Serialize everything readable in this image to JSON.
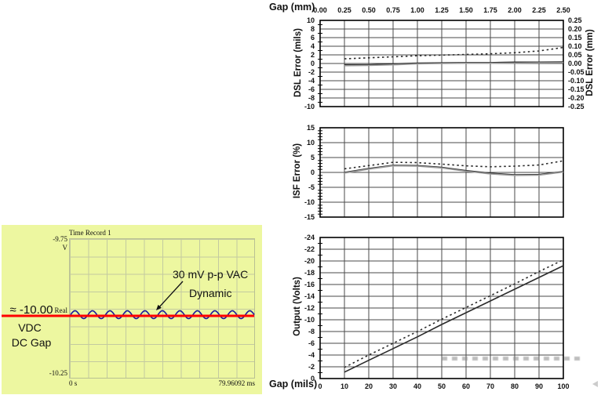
{
  "chart_data": [
    {
      "type": "line",
      "xlabel": "Gap (mm)",
      "ylabel": "DSL Error (mils)",
      "ylabel_right": "DSL Error (mm)",
      "xlim": [
        0,
        2.5
      ],
      "ylim": [
        10,
        -10
      ],
      "grid": true,
      "xtick_labels": [
        "0.00",
        "0.25",
        "0.50",
        "0.75",
        "1.00",
        "1.25",
        "1.50",
        "1.75",
        "2.00",
        "2.25",
        "2.50"
      ],
      "ytick_labels": [
        "10",
        "8",
        "6",
        "4",
        "2",
        "0",
        "-2",
        "-4",
        "-6",
        "-8",
        "-10"
      ],
      "ytick_labels_right": [
        "0.25",
        "0.20",
        "0.15",
        "0.10",
        "0.05",
        "0.00",
        "-0.05",
        "-0.10",
        "-0.15",
        "-0.20",
        "-0.25"
      ],
      "series": [
        {
          "name": "dashed-error",
          "style": "dashed",
          "color": "#2a2a2a",
          "x": [
            0.25,
            0.5,
            0.75,
            1.0,
            1.25,
            1.5,
            1.75,
            2.0,
            2.25,
            2.5
          ],
          "values": [
            1.1,
            1.3,
            1.55,
            1.8,
            1.95,
            2.1,
            2.25,
            2.5,
            2.9,
            3.7
          ]
        },
        {
          "name": "solid-error-black",
          "style": "solid",
          "color": "#2a2a2a",
          "x": [
            0.25,
            0.5,
            0.75,
            1.0,
            1.25,
            1.5,
            1.75,
            2.0,
            2.25,
            2.5
          ],
          "values": [
            -0.3,
            -0.3,
            -0.1,
            0.1,
            0.15,
            0.2,
            0.2,
            0.3,
            0.3,
            0.35
          ]
        },
        {
          "name": "solid-error-gray",
          "style": "solid",
          "color": "#9a9a9a",
          "x": [
            0.25,
            0.5,
            0.75,
            1.0,
            1.25,
            1.5,
            1.75,
            2.0,
            2.25,
            2.5
          ],
          "values": [
            -0.5,
            -0.45,
            -0.3,
            -0.1,
            0.0,
            0.05,
            0.05,
            0.1,
            0.15,
            0.2
          ]
        }
      ]
    },
    {
      "type": "line",
      "xlabel": "",
      "ylabel": "ISF Error (%)",
      "xlim": [
        0,
        2.5
      ],
      "ylim": [
        15,
        -15
      ],
      "grid": true,
      "xtick_labels": [
        "0.00",
        "0.25",
        "0.50",
        "0.75",
        "1.00",
        "1.25",
        "1.50",
        "1.75",
        "2.00",
        "2.25",
        "2.50"
      ],
      "ytick_labels": [
        "15",
        "10",
        "5",
        "0",
        "-5",
        "-10",
        "-15"
      ],
      "series": [
        {
          "name": "dashed-isf",
          "style": "dashed",
          "color": "#2a2a2a",
          "x": [
            0.25,
            0.5,
            0.75,
            1.0,
            1.25,
            1.5,
            1.75,
            2.0,
            2.25,
            2.5
          ],
          "values": [
            1.2,
            2.3,
            3.4,
            3.3,
            2.8,
            2.2,
            1.9,
            2.1,
            2.5,
            3.9
          ]
        },
        {
          "name": "solid-isf-black",
          "style": "solid",
          "color": "#2a2a2a",
          "x": [
            0.25,
            0.5,
            0.75,
            1.0,
            1.25,
            1.5,
            1.75,
            2.0,
            2.25,
            2.5
          ],
          "values": [
            0.0,
            1.3,
            2.4,
            2.3,
            1.7,
            0.6,
            -0.3,
            -0.8,
            -0.7,
            0.3
          ]
        },
        {
          "name": "solid-isf-gray",
          "style": "solid",
          "color": "#9a9a9a",
          "x": [
            0.25,
            0.5,
            0.75,
            1.0,
            1.25,
            1.5,
            1.75,
            2.0,
            2.25,
            2.5
          ],
          "values": [
            -0.2,
            1.1,
            2.2,
            2.1,
            1.5,
            0.4,
            -0.5,
            -1.0,
            -0.9,
            0.1
          ]
        }
      ]
    },
    {
      "type": "line",
      "xlabel": "Gap (mils)",
      "ylabel": "Output (Volts)",
      "xlim": [
        0,
        100
      ],
      "ylim": [
        -24,
        0
      ],
      "grid": true,
      "xtick_labels": [
        "0",
        "10",
        "20",
        "30",
        "40",
        "50",
        "60",
        "70",
        "80",
        "90",
        "100"
      ],
      "ytick_labels": [
        "-24",
        "-22",
        "-20",
        "-18",
        "-16",
        "-14",
        "-12",
        "-10",
        "-8",
        "-6",
        "-4",
        "-2",
        "0"
      ],
      "series": [
        {
          "name": "solid-output",
          "style": "solid",
          "color": "#2a2a2a",
          "x": [
            10,
            20,
            30,
            40,
            50,
            60,
            70,
            80,
            90,
            100
          ],
          "values": [
            -1.1,
            -3.1,
            -5.1,
            -7.1,
            -9.2,
            -11.2,
            -13.2,
            -15.2,
            -17.2,
            -19.2
          ]
        },
        {
          "name": "dashed-output",
          "style": "dashed",
          "color": "#2a2a2a",
          "x": [
            10,
            20,
            30,
            40,
            50,
            60,
            70,
            80,
            90,
            100
          ],
          "values": [
            -1.9,
            -4.0,
            -6.0,
            -8.0,
            -10.1,
            -12.1,
            -14.1,
            -16.1,
            -18.2,
            -20.2
          ]
        }
      ]
    },
    {
      "type": "line",
      "title": "Time Record 1",
      "unit_label": "V",
      "y_top_label": "-9.75",
      "y_bottom_label": "-10.25",
      "trace_label": "Real",
      "x_left_label": "0 s",
      "x_right_label": "79.96092 ms",
      "dc_value_label": "≈ -10.00",
      "dc_unit_label": "VDC",
      "dc_caption": "DC Gap",
      "callout_line1": "30 mV p-p VAC",
      "callout_line2": "Dynamic",
      "signal": {
        "dc_volts": -10.0,
        "ac_mv_pp": 30,
        "cycles_visible": 10.5
      },
      "colors": {
        "bg": "#edf7a0",
        "dc_line": "#ff0000",
        "wave": "#1c1c9c"
      }
    }
  ]
}
